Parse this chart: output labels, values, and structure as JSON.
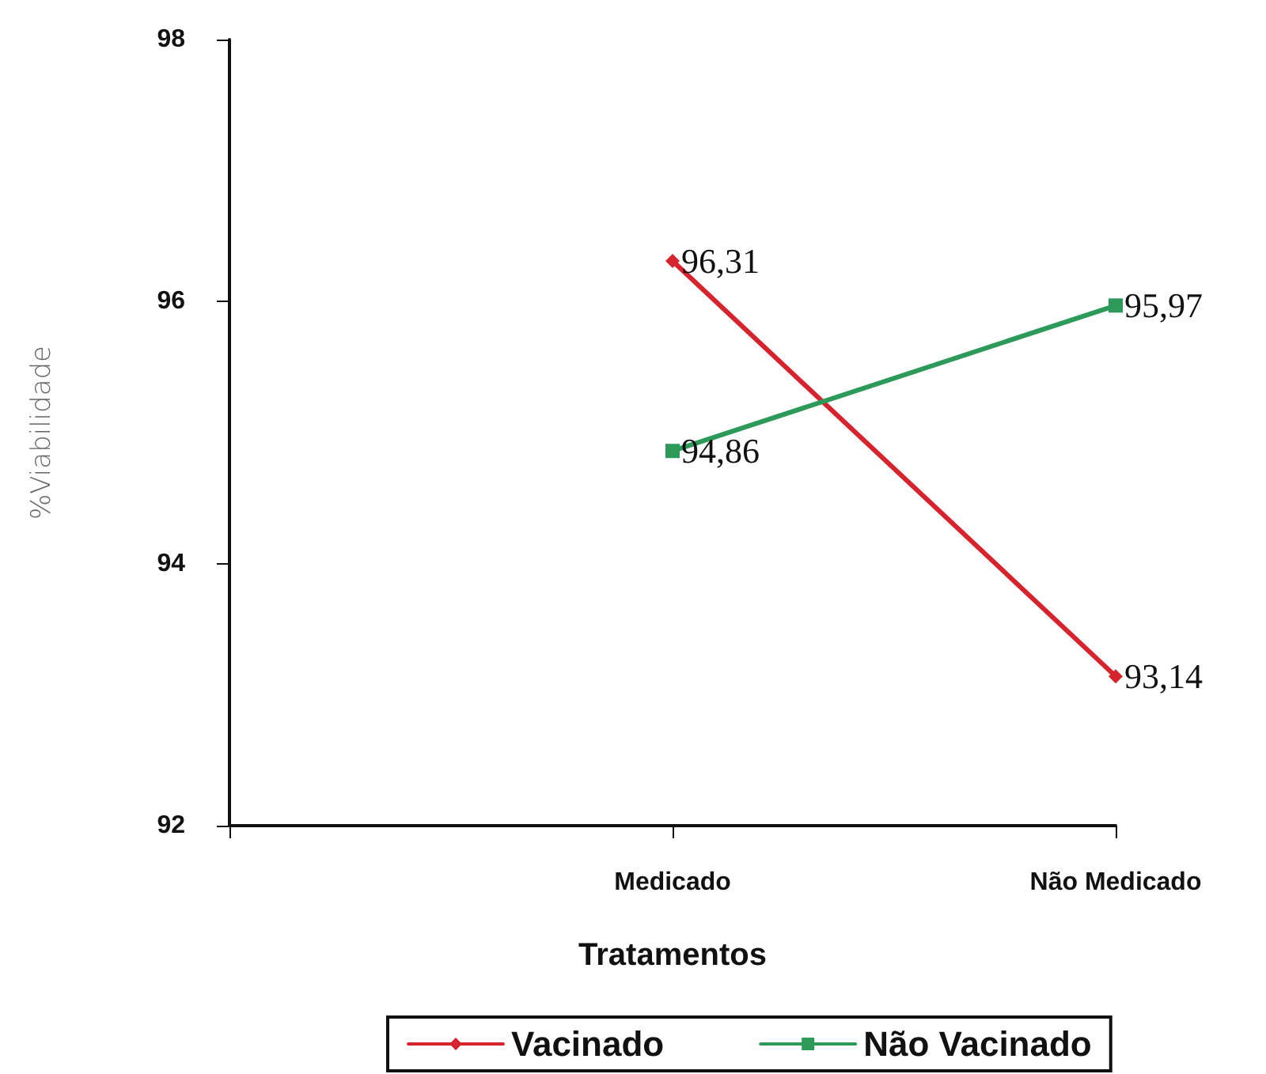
{
  "chart_data": {
    "type": "line",
    "xlabel": "Tratamentos",
    "ylabel": "%Viabilidade",
    "categories": [
      null,
      "Medicado",
      "Não Medicado"
    ],
    "series": [
      {
        "name": "Vacinado",
        "color": "#d6242f",
        "marker": "diamond",
        "values": [
          null,
          96.31,
          93.14
        ],
        "value_labels": [
          null,
          "96,31",
          "93,14"
        ]
      },
      {
        "name": "Não Vacinado",
        "color": "#2e9a5a",
        "marker": "square",
        "values": [
          null,
          94.86,
          95.97
        ],
        "value_labels": [
          null,
          "94,86",
          "95,97"
        ]
      }
    ],
    "ylim": [
      92,
      98
    ],
    "yticks": [
      92,
      94,
      96,
      98
    ],
    "grid": false,
    "legend": "bottom"
  }
}
